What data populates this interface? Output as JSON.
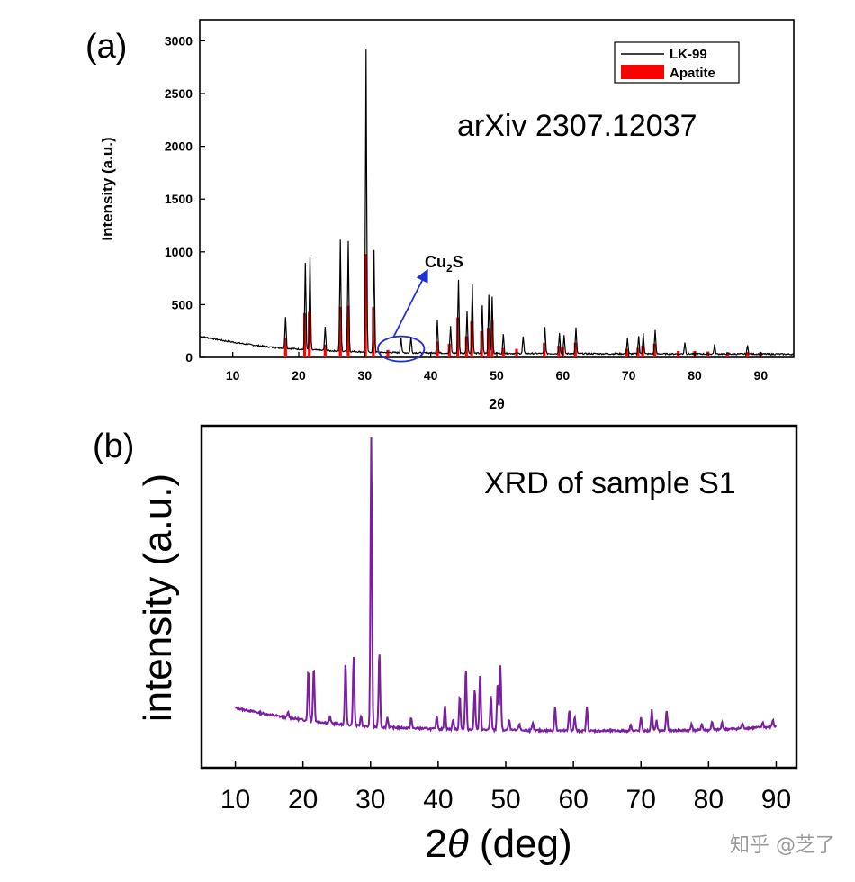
{
  "panel_labels": {
    "a": "(a)",
    "b": "(b)"
  },
  "watermark": "知乎 @芝了",
  "chart_data": [
    {
      "type": "line",
      "panel": "(a)",
      "annotation": "arXiv 2307.12037",
      "xlabel": "2θ",
      "ylabel": "Intensity (a.u.)",
      "xlim": [
        5,
        95
      ],
      "ylim": [
        0,
        3200
      ],
      "x_ticks": [
        10,
        20,
        30,
        40,
        50,
        60,
        70,
        80,
        90
      ],
      "y_ticks": [
        0,
        500,
        1000,
        1500,
        2000,
        2500,
        3000
      ],
      "legend": {
        "placement": "top-right",
        "entries": [
          "LK-99",
          "Apatite"
        ]
      },
      "cu2s_label": {
        "text_main": "Cu",
        "text_sub": "2",
        "text_tail": "S",
        "region_x": [
          32,
          39
        ]
      },
      "series": [
        {
          "name": "LK-99",
          "color": "#000000",
          "background": [
            [
              5,
              200
            ],
            [
              8,
              165
            ],
            [
              12,
              125
            ],
            [
              16,
              95
            ],
            [
              20,
              78
            ],
            [
              25,
              62
            ],
            [
              30,
              52
            ],
            [
              35,
              45
            ],
            [
              40,
              42
            ],
            [
              50,
              38
            ],
            [
              60,
              36
            ],
            [
              70,
              34
            ],
            [
              80,
              33
            ],
            [
              90,
              32
            ],
            [
              95,
              30
            ]
          ],
          "peaks": [
            [
              18.0,
              300
            ],
            [
              21.0,
              820
            ],
            [
              21.7,
              880
            ],
            [
              24.0,
              220
            ],
            [
              26.3,
              1050
            ],
            [
              27.5,
              1050
            ],
            [
              30.2,
              2860
            ],
            [
              31.4,
              970
            ],
            [
              35.5,
              140
            ],
            [
              37.0,
              150
            ],
            [
              41.0,
              320
            ],
            [
              43.0,
              250
            ],
            [
              44.2,
              700
            ],
            [
              45.5,
              400
            ],
            [
              46.3,
              650
            ],
            [
              47.8,
              450
            ],
            [
              48.8,
              560
            ],
            [
              49.3,
              540
            ],
            [
              51.0,
              180
            ],
            [
              54.0,
              160
            ],
            [
              57.3,
              250
            ],
            [
              59.5,
              200
            ],
            [
              60.2,
              170
            ],
            [
              62.0,
              250
            ],
            [
              69.8,
              150
            ],
            [
              71.5,
              170
            ],
            [
              72.2,
              200
            ],
            [
              74.0,
              230
            ],
            [
              78.5,
              110
            ],
            [
              83.0,
              90
            ],
            [
              88.0,
              80
            ]
          ]
        },
        {
          "name": "Apatite",
          "color": "#ff0000",
          "sticks": [
            [
              18.0,
              180
            ],
            [
              20.9,
              420
            ],
            [
              21.6,
              430
            ],
            [
              24.0,
              120
            ],
            [
              26.3,
              480
            ],
            [
              27.5,
              490
            ],
            [
              30.1,
              980
            ],
            [
              31.3,
              480
            ],
            [
              33.5,
              70
            ],
            [
              41.0,
              150
            ],
            [
              42.8,
              130
            ],
            [
              44.1,
              380
            ],
            [
              45.4,
              200
            ],
            [
              46.2,
              340
            ],
            [
              47.7,
              250
            ],
            [
              48.7,
              280
            ],
            [
              49.3,
              350
            ],
            [
              51.0,
              90
            ],
            [
              53.0,
              80
            ],
            [
              57.2,
              140
            ],
            [
              59.4,
              110
            ],
            [
              60.0,
              100
            ],
            [
              61.9,
              140
            ],
            [
              69.7,
              80
            ],
            [
              71.4,
              90
            ],
            [
              72.1,
              110
            ],
            [
              73.9,
              130
            ],
            [
              77.5,
              60
            ],
            [
              80.0,
              60
            ],
            [
              82.0,
              55
            ],
            [
              85.0,
              50
            ],
            [
              88.0,
              50
            ],
            [
              90.0,
              45
            ]
          ]
        }
      ]
    },
    {
      "type": "line",
      "panel": "(b)",
      "annotation": "XRD of sample S1",
      "xlabel_prefix": "2",
      "xlabel_symbol": "θ",
      "xlabel_suffix": " (deg)",
      "ylabel": "intensity (a.u.)",
      "xlim": [
        5,
        93
      ],
      "ylim": [
        0,
        1.0
      ],
      "x_ticks": [
        10,
        20,
        30,
        40,
        50,
        60,
        70,
        80,
        90
      ],
      "series": [
        {
          "name": "",
          "color": "#7b1fa2",
          "background": [
            [
              10,
              0.175
            ],
            [
              15,
              0.155
            ],
            [
              20,
              0.14
            ],
            [
              25,
              0.128
            ],
            [
              30,
              0.12
            ],
            [
              40,
              0.113
            ],
            [
              50,
              0.11
            ],
            [
              60,
              0.108
            ],
            [
              70,
              0.108
            ],
            [
              80,
              0.11
            ],
            [
              90,
              0.12
            ]
          ],
          "peaks": [
            [
              17.8,
              0.015
            ],
            [
              20.8,
              0.15
            ],
            [
              21.6,
              0.16
            ],
            [
              24.0,
              0.02
            ],
            [
              26.3,
              0.18
            ],
            [
              27.5,
              0.2
            ],
            [
              28.6,
              0.03
            ],
            [
              30.1,
              0.85
            ],
            [
              31.3,
              0.22
            ],
            [
              32.5,
              0.03
            ],
            [
              36.0,
              0.03
            ],
            [
              39.8,
              0.04
            ],
            [
              41.0,
              0.07
            ],
            [
              42.2,
              0.03
            ],
            [
              43.2,
              0.1
            ],
            [
              44.1,
              0.18
            ],
            [
              45.4,
              0.12
            ],
            [
              46.2,
              0.16
            ],
            [
              47.8,
              0.1
            ],
            [
              48.8,
              0.14
            ],
            [
              49.2,
              0.19
            ],
            [
              50.5,
              0.03
            ],
            [
              52.0,
              0.02
            ],
            [
              54.0,
              0.02
            ],
            [
              57.3,
              0.07
            ],
            [
              59.4,
              0.06
            ],
            [
              60.2,
              0.04
            ],
            [
              62.0,
              0.07
            ],
            [
              68.5,
              0.02
            ],
            [
              70.0,
              0.04
            ],
            [
              71.6,
              0.06
            ],
            [
              72.3,
              0.03
            ],
            [
              73.8,
              0.06
            ],
            [
              77.5,
              0.02
            ],
            [
              79.0,
              0.02
            ],
            [
              80.5,
              0.025
            ],
            [
              82.0,
              0.02
            ],
            [
              85.0,
              0.015
            ],
            [
              88.0,
              0.015
            ],
            [
              89.5,
              0.02
            ]
          ]
        }
      ]
    }
  ]
}
